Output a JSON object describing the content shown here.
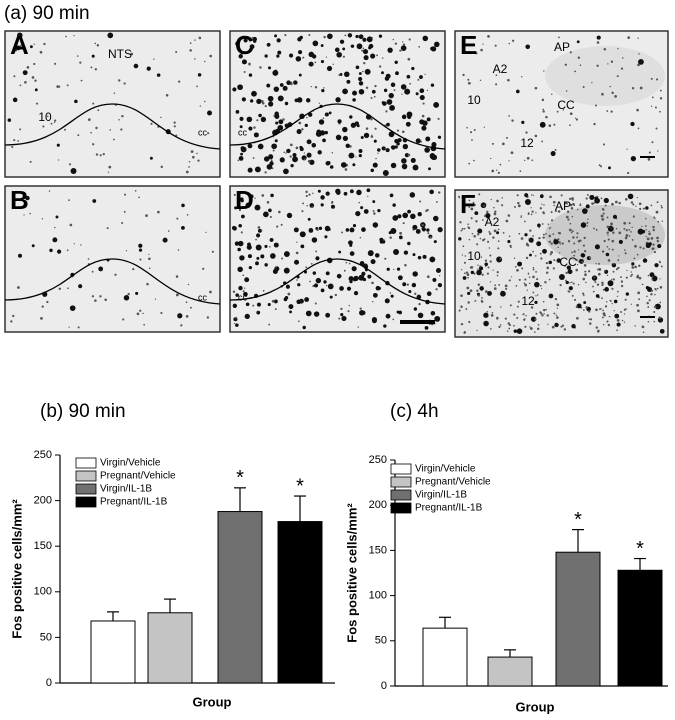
{
  "figure_title": "(a) 90 min",
  "panels": [
    {
      "letter": "A",
      "labels": [
        "NTS",
        "10",
        "cc"
      ]
    },
    {
      "letter": "B",
      "labels": [
        "cc"
      ]
    },
    {
      "letter": "C",
      "labels": [
        "cc"
      ]
    },
    {
      "letter": "D",
      "labels": [
        "cc"
      ]
    },
    {
      "letter": "E",
      "labels": [
        "AP",
        "A2",
        "10",
        "CC",
        "12"
      ]
    },
    {
      "letter": "F",
      "labels": [
        "AP",
        "A2",
        "10",
        "CC",
        "12"
      ]
    }
  ],
  "chart_data": [
    {
      "type": "bar",
      "title": "(b) 90 min",
      "ylabel": "Fos positive cells/mm²",
      "xlabel": "Group",
      "series": [
        {
          "name": "Virgin/Vehicle",
          "color": "#ffffff",
          "values": [
            68
          ],
          "errors": [
            10
          ],
          "marker": [
            null
          ]
        },
        {
          "name": "Pregnant/Vehicle",
          "color": "#c4c4c4",
          "values": [
            77
          ],
          "errors": [
            15
          ],
          "marker": [
            null
          ]
        },
        {
          "name": "Virgin/IL-1B",
          "color": "#707070",
          "values": [
            188
          ],
          "errors": [
            26
          ],
          "marker": [
            "*"
          ]
        },
        {
          "name": "Pregnant/IL-1B",
          "color": "#000000",
          "values": [
            177
          ],
          "errors": [
            28
          ],
          "marker": [
            "*"
          ]
        }
      ],
      "ylim": [
        0,
        250
      ],
      "yticks": [
        0,
        50,
        100,
        150,
        200,
        250
      ],
      "legend": "upper left"
    },
    {
      "type": "bar",
      "title": "(c) 4h",
      "ylabel": "Fos positive cells/mm²",
      "xlabel": "Group",
      "series": [
        {
          "name": "Virgin/Vehicle",
          "color": "#ffffff",
          "values": [
            64
          ],
          "errors": [
            12
          ],
          "marker": [
            null
          ]
        },
        {
          "name": "Pregnant/Vehicle",
          "color": "#c4c4c4",
          "values": [
            32
          ],
          "errors": [
            8
          ],
          "marker": [
            null
          ]
        },
        {
          "name": "Virgin/IL-1B",
          "color": "#707070",
          "values": [
            148
          ],
          "errors": [
            25
          ],
          "marker": [
            "*"
          ]
        },
        {
          "name": "Pregnant/IL-1B",
          "color": "#000000",
          "values": [
            128
          ],
          "errors": [
            13
          ],
          "marker": [
            "*"
          ]
        }
      ],
      "ylim": [
        0,
        250
      ],
      "yticks": [
        0,
        50,
        100,
        150,
        200,
        250
      ],
      "legend": "upper left"
    }
  ]
}
